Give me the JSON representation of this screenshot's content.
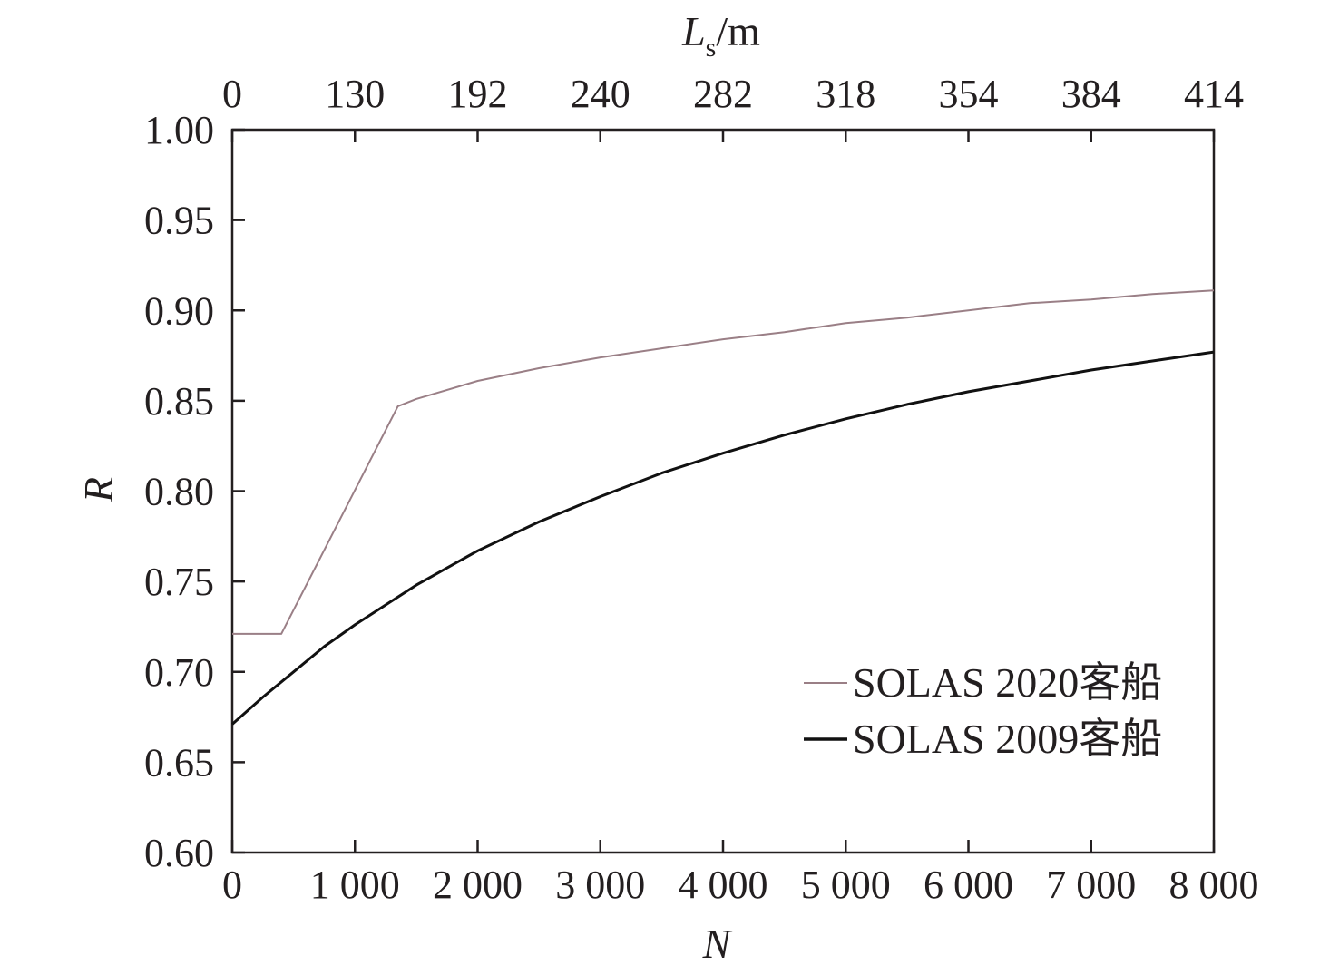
{
  "chart_data": {
    "type": "line",
    "xlabel": "N",
    "ylabel": "R",
    "top_xlabel_main": "L",
    "top_xlabel_sub": "s",
    "top_xlabel_unit": "/m",
    "xlim": [
      0,
      8000
    ],
    "ylim": [
      0.6,
      1.0
    ],
    "x_ticks": [
      {
        "value": 0,
        "label": "0"
      },
      {
        "value": 1000,
        "label": "1 000"
      },
      {
        "value": 2000,
        "label": "2 000"
      },
      {
        "value": 3000,
        "label": "3 000"
      },
      {
        "value": 4000,
        "label": "4 000"
      },
      {
        "value": 5000,
        "label": "5 000"
      },
      {
        "value": 6000,
        "label": "6 000"
      },
      {
        "value": 7000,
        "label": "7 000"
      },
      {
        "value": 8000,
        "label": "8 000"
      }
    ],
    "y_ticks": [
      {
        "value": 0.6,
        "label": "0.60"
      },
      {
        "value": 0.65,
        "label": "0.65"
      },
      {
        "value": 0.7,
        "label": "0.70"
      },
      {
        "value": 0.75,
        "label": "0.75"
      },
      {
        "value": 0.8,
        "label": "0.80"
      },
      {
        "value": 0.85,
        "label": "0.85"
      },
      {
        "value": 0.9,
        "label": "0.90"
      },
      {
        "value": 0.95,
        "label": "0.95"
      },
      {
        "value": 1.0,
        "label": "1.00"
      }
    ],
    "top_ticks": [
      {
        "value": 0,
        "label": "0"
      },
      {
        "value": 1000,
        "label": "130"
      },
      {
        "value": 2000,
        "label": "192"
      },
      {
        "value": 3000,
        "label": "240"
      },
      {
        "value": 4000,
        "label": "282"
      },
      {
        "value": 5000,
        "label": "318"
      },
      {
        "value": 6000,
        "label": "354"
      },
      {
        "value": 7000,
        "label": "384"
      },
      {
        "value": 8000,
        "label": "414"
      }
    ],
    "grid": false,
    "legend_position": "bottom-right",
    "series": [
      {
        "name": "SOLAS 2020客船",
        "color": "#9a7f86",
        "points": [
          [
            0,
            0.721
          ],
          [
            400,
            0.721
          ],
          [
            1350,
            0.847
          ],
          [
            1500,
            0.851
          ],
          [
            2000,
            0.861
          ],
          [
            2500,
            0.868
          ],
          [
            3000,
            0.874
          ],
          [
            3500,
            0.879
          ],
          [
            4000,
            0.884
          ],
          [
            4500,
            0.888
          ],
          [
            5000,
            0.893
          ],
          [
            5500,
            0.896
          ],
          [
            6000,
            0.9
          ],
          [
            6500,
            0.904
          ],
          [
            7000,
            0.906
          ],
          [
            7500,
            0.909
          ],
          [
            8000,
            0.911
          ]
        ]
      },
      {
        "name": "SOLAS 2009客船",
        "color": "#111111",
        "points": [
          [
            0,
            0.671
          ],
          [
            250,
            0.686
          ],
          [
            500,
            0.7
          ],
          [
            750,
            0.714
          ],
          [
            1000,
            0.726
          ],
          [
            1250,
            0.737
          ],
          [
            1500,
            0.748
          ],
          [
            2000,
            0.767
          ],
          [
            2500,
            0.783
          ],
          [
            3000,
            0.797
          ],
          [
            3500,
            0.81
          ],
          [
            4000,
            0.821
          ],
          [
            4500,
            0.831
          ],
          [
            5000,
            0.84
          ],
          [
            5500,
            0.848
          ],
          [
            6000,
            0.855
          ],
          [
            6500,
            0.861
          ],
          [
            7000,
            0.867
          ],
          [
            7500,
            0.872
          ],
          [
            8000,
            0.877
          ]
        ]
      }
    ]
  }
}
